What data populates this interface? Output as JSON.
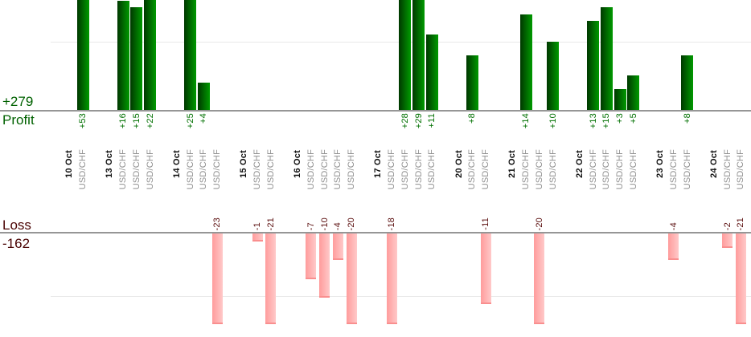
{
  "chart_data": {
    "type": "bar",
    "title": "",
    "symbol_label": "USD/CHF",
    "profit_summary": {
      "label": "Profit",
      "total": "+279"
    },
    "loss_summary": {
      "label": "Loss",
      "total": "-162"
    },
    "groups": [
      {
        "date": "10 Oct",
        "trades": [
          53
        ]
      },
      {
        "date": "13 Oct",
        "trades": [
          16,
          15,
          22
        ]
      },
      {
        "date": "14 Oct",
        "trades": [
          25,
          4,
          -23
        ]
      },
      {
        "date": "15 Oct",
        "trades": [
          -1,
          -21
        ]
      },
      {
        "date": "16 Oct",
        "trades": [
          -7,
          -10,
          -4,
          -20
        ]
      },
      {
        "date": "17 Oct",
        "trades": [
          -18,
          28,
          29,
          11
        ]
      },
      {
        "date": "20 Oct",
        "trades": [
          8,
          -11
        ]
      },
      {
        "date": "21 Oct",
        "trades": [
          14,
          -20,
          10
        ]
      },
      {
        "date": "22 Oct",
        "trades": [
          13,
          15,
          3,
          5
        ]
      },
      {
        "date": "23 Oct",
        "trades": [
          -4,
          8
        ]
      },
      {
        "date": "24 Oct",
        "trades": [
          -2,
          -21
        ]
      }
    ],
    "layout": {
      "grid": "on",
      "gridline_value_profit": 10,
      "gridline_value_loss": -10,
      "profit_axis_visible_max": 16,
      "loss_axis_visible_min": -14.5,
      "note_clipping": "bars larger than visible range are clipped at strip edges"
    }
  },
  "colors": {
    "profit_bar_dark": "#003800",
    "profit_bar_light": "#009a00",
    "loss_bar_dark": "#ff9c9c",
    "loss_bar_light": "#ffc9c9",
    "loss_bar_cap": "#f98f8f",
    "profit_text": "#007000",
    "profit_summary_text": "#006100",
    "loss_text": "#5a0d0d",
    "loss_summary_text": "#4a0303",
    "date_text": "#111111",
    "symbol_text": "#909090",
    "axis": "#969696",
    "gridline": "#e9e9e9"
  }
}
